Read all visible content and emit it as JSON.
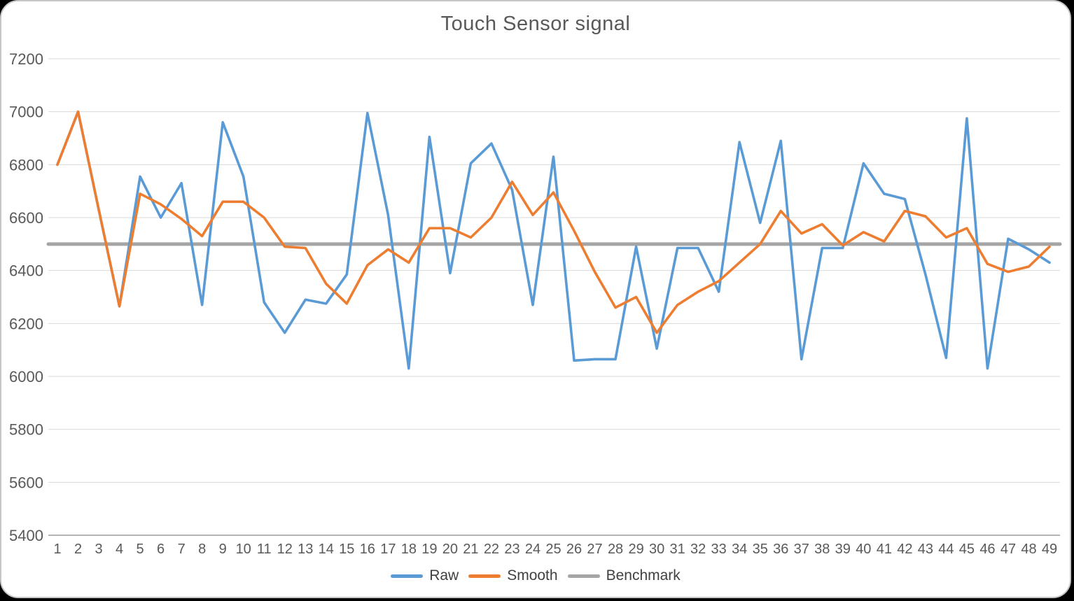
{
  "panel": {
    "title": "Touch Sensor signal"
  },
  "chart_data": {
    "type": "line",
    "title": "Touch Sensor signal",
    "categories": [
      "1",
      "2",
      "3",
      "4",
      "5",
      "6",
      "7",
      "8",
      "9",
      "10",
      "11",
      "12",
      "13",
      "14",
      "15",
      "16",
      "17",
      "18",
      "19",
      "20",
      "21",
      "22",
      "23",
      "24",
      "25",
      "26",
      "27",
      "28",
      "29",
      "30",
      "31",
      "32",
      "33",
      "34",
      "35",
      "36",
      "37",
      "38",
      "39",
      "40",
      "41",
      "42",
      "43",
      "44",
      "45",
      "46",
      "47",
      "48",
      "49"
    ],
    "series": [
      {
        "name": "Raw",
        "color": "#5B9BD5",
        "values": [
          6800,
          7000,
          6630,
          6265,
          6755,
          6600,
          6730,
          6270,
          6960,
          6755,
          6280,
          6165,
          6290,
          6275,
          6385,
          6995,
          6610,
          6030,
          6905,
          6390,
          6805,
          6880,
          6705,
          6270,
          6830,
          6060,
          6065,
          6065,
          6490,
          6105,
          6485,
          6485,
          6320,
          6885,
          6580,
          6890,
          6065,
          6485,
          6485,
          6805,
          6690,
          6670,
          6385,
          6070,
          6975,
          6030,
          6520,
          6480,
          6430
        ]
      },
      {
        "name": "Smooth",
        "color": "#ED7D31",
        "values": [
          6800,
          7000,
          6630,
          6265,
          6690,
          6650,
          6595,
          6530,
          6660,
          6660,
          6600,
          6490,
          6485,
          6350,
          6275,
          6420,
          6480,
          6430,
          6560,
          6560,
          6525,
          6600,
          6735,
          6610,
          6695,
          6550,
          6395,
          6260,
          6300,
          6165,
          6270,
          6320,
          6360,
          6430,
          6500,
          6625,
          6540,
          6575,
          6495,
          6545,
          6510,
          6625,
          6605,
          6525,
          6560,
          6425,
          6395,
          6415,
          6490
        ]
      },
      {
        "name": "Benchmark",
        "color": "#A5A5A5",
        "constant": 6500
      }
    ],
    "ylim": [
      5400,
      7200
    ],
    "y_ticks": [
      7200,
      7000,
      6800,
      6600,
      6400,
      6200,
      6000,
      5800,
      5600,
      5400
    ],
    "grid": true,
    "legend_position": "bottom",
    "colors": {
      "gridline": "#D9D9D9",
      "axis_line": "#9B9B9B",
      "tick_label": "#595959",
      "title": "#595959",
      "legend_text": "#404040"
    }
  }
}
